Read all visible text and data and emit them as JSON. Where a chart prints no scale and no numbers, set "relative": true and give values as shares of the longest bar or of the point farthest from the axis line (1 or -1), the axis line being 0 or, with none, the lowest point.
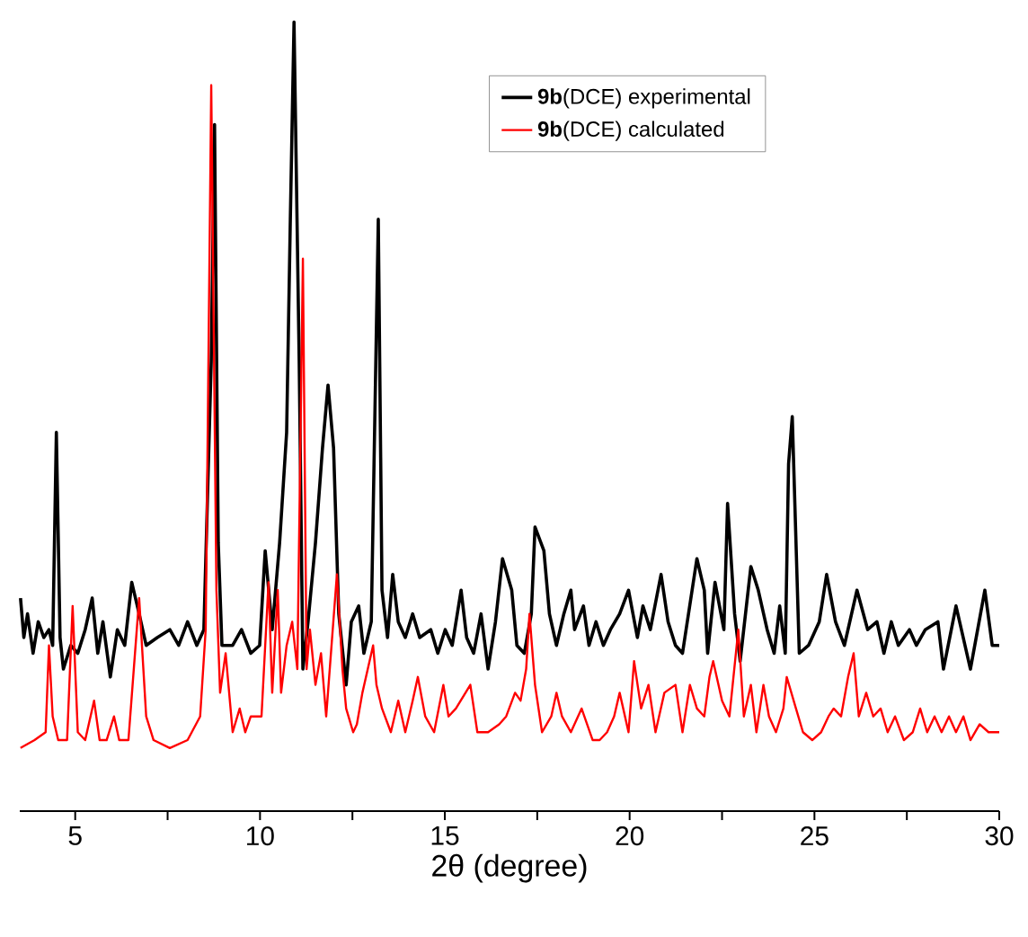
{
  "chart_data": {
    "type": "line",
    "relative": true,
    "xlabel": "2θ (degree)",
    "xlim": [
      3.5,
      30
    ],
    "xticks": [
      5,
      {
        "value": 7.5,
        "label": null
      },
      10,
      {
        "value": 12.5,
        "label": null
      },
      15,
      {
        "value": 17.5,
        "label": null
      },
      20,
      {
        "value": 22.5,
        "label": null
      },
      25,
      {
        "value": 27.5,
        "label": null
      },
      30
    ],
    "legend": "top right",
    "series": [
      {
        "name": "**9b**(DCE) experimental",
        "color": "#000000",
        "x": [
          3.52,
          3.61,
          3.71,
          3.86,
          4.0,
          4.15,
          4.29,
          4.39,
          4.49,
          4.59,
          4.68,
          4.88,
          5.07,
          5.27,
          5.46,
          5.61,
          5.75,
          5.95,
          6.14,
          6.34,
          6.53,
          6.73,
          6.92,
          7.22,
          7.56,
          7.8,
          8.04,
          8.29,
          8.48,
          8.68,
          8.77,
          8.87,
          8.97,
          9.26,
          9.5,
          9.75,
          9.99,
          10.14,
          10.33,
          10.53,
          10.72,
          10.82,
          10.92,
          11.06,
          11.16,
          11.3,
          11.5,
          11.69,
          11.84,
          11.99,
          12.13,
          12.33,
          12.47,
          12.67,
          12.81,
          13.01,
          13.2,
          13.3,
          13.45,
          13.59,
          13.74,
          13.93,
          14.13,
          14.32,
          14.62,
          14.81,
          15.01,
          15.2,
          15.44,
          15.59,
          15.78,
          15.98,
          16.17,
          16.37,
          16.56,
          16.81,
          16.95,
          17.15,
          17.34,
          17.44,
          17.68,
          17.83,
          18.02,
          18.22,
          18.41,
          18.51,
          18.75,
          18.9,
          19.09,
          19.29,
          19.48,
          19.73,
          19.97,
          20.21,
          20.36,
          20.56,
          20.85,
          21.04,
          21.24,
          21.43,
          21.82,
          22.02,
          22.11,
          22.31,
          22.55,
          22.65,
          22.84,
          22.99,
          23.28,
          23.48,
          23.72,
          23.91,
          24.06,
          24.21,
          24.3,
          24.4,
          24.59,
          24.84,
          25.13,
          25.33,
          25.57,
          25.81,
          26.15,
          26.44,
          26.69,
          26.88,
          27.08,
          27.27,
          27.57,
          27.76,
          28.0,
          28.34,
          28.49,
          28.83,
          29.22,
          29.61,
          29.81,
          30.0
        ],
        "values": [
          0.27,
          0.22,
          0.25,
          0.2,
          0.24,
          0.22,
          0.23,
          0.21,
          0.48,
          0.22,
          0.18,
          0.21,
          0.2,
          0.23,
          0.27,
          0.2,
          0.24,
          0.17,
          0.23,
          0.21,
          0.29,
          0.25,
          0.21,
          0.22,
          0.23,
          0.21,
          0.24,
          0.21,
          0.23,
          0.57,
          0.87,
          0.34,
          0.21,
          0.21,
          0.23,
          0.2,
          0.21,
          0.33,
          0.23,
          0.34,
          0.48,
          0.75,
          1.0,
          0.57,
          0.18,
          0.24,
          0.34,
          0.46,
          0.54,
          0.46,
          0.25,
          0.16,
          0.24,
          0.26,
          0.2,
          0.24,
          0.75,
          0.28,
          0.22,
          0.3,
          0.24,
          0.22,
          0.25,
          0.22,
          0.23,
          0.2,
          0.23,
          0.21,
          0.28,
          0.22,
          0.2,
          0.25,
          0.18,
          0.24,
          0.32,
          0.28,
          0.21,
          0.2,
          0.25,
          0.36,
          0.33,
          0.25,
          0.21,
          0.25,
          0.28,
          0.23,
          0.26,
          0.21,
          0.24,
          0.21,
          0.23,
          0.25,
          0.28,
          0.22,
          0.26,
          0.23,
          0.3,
          0.24,
          0.21,
          0.2,
          0.32,
          0.28,
          0.2,
          0.29,
          0.23,
          0.39,
          0.25,
          0.19,
          0.31,
          0.28,
          0.23,
          0.2,
          0.26,
          0.2,
          0.44,
          0.5,
          0.2,
          0.21,
          0.24,
          0.3,
          0.24,
          0.21,
          0.28,
          0.23,
          0.24,
          0.2,
          0.24,
          0.21,
          0.23,
          0.21,
          0.23,
          0.24,
          0.18,
          0.26,
          0.18,
          0.28,
          0.21,
          0.21
        ]
      },
      {
        "name": "**9b**(DCE) calculated",
        "color": "#ff0000",
        "x": [
          3.52,
          3.9,
          4.2,
          4.29,
          4.39,
          4.54,
          4.78,
          4.93,
          5.07,
          5.27,
          5.51,
          5.66,
          5.85,
          6.05,
          6.19,
          6.44,
          6.73,
          6.92,
          7.12,
          7.56,
          8.04,
          8.38,
          8.53,
          8.68,
          8.82,
          8.92,
          9.07,
          9.26,
          9.45,
          9.6,
          9.75,
          9.89,
          10.04,
          10.23,
          10.33,
          10.48,
          10.57,
          10.72,
          10.87,
          11.01,
          11.16,
          11.26,
          11.35,
          11.5,
          11.65,
          11.79,
          12.08,
          12.23,
          12.33,
          12.52,
          12.62,
          12.77,
          13.06,
          13.15,
          13.3,
          13.54,
          13.74,
          13.93,
          14.13,
          14.27,
          14.47,
          14.71,
          14.96,
          15.1,
          15.3,
          15.69,
          15.88,
          16.17,
          16.47,
          16.66,
          16.9,
          17.05,
          17.2,
          17.29,
          17.44,
          17.63,
          17.88,
          18.02,
          18.17,
          18.41,
          18.7,
          19.0,
          19.19,
          19.39,
          19.58,
          19.73,
          19.97,
          20.12,
          20.31,
          20.51,
          20.7,
          20.94,
          21.24,
          21.43,
          21.63,
          21.82,
          22.02,
          22.16,
          22.26,
          22.5,
          22.7,
          22.94,
          23.09,
          23.28,
          23.43,
          23.62,
          23.77,
          23.96,
          24.16,
          24.25,
          24.5,
          24.69,
          24.94,
          25.18,
          25.38,
          25.52,
          25.72,
          25.91,
          26.06,
          26.2,
          26.4,
          26.59,
          26.79,
          26.98,
          27.18,
          27.42,
          27.66,
          27.86,
          28.05,
          28.25,
          28.44,
          28.64,
          28.83,
          29.03,
          29.22,
          29.47,
          29.71,
          30.0
        ],
        "values": [
          0.08,
          0.09,
          0.1,
          0.21,
          0.12,
          0.09,
          0.09,
          0.26,
          0.1,
          0.09,
          0.14,
          0.09,
          0.09,
          0.12,
          0.09,
          0.09,
          0.27,
          0.12,
          0.09,
          0.08,
          0.09,
          0.12,
          0.23,
          0.92,
          0.28,
          0.15,
          0.2,
          0.1,
          0.13,
          0.1,
          0.12,
          0.12,
          0.12,
          0.29,
          0.15,
          0.28,
          0.15,
          0.21,
          0.24,
          0.18,
          0.7,
          0.18,
          0.23,
          0.16,
          0.2,
          0.12,
          0.3,
          0.18,
          0.13,
          0.1,
          0.11,
          0.15,
          0.21,
          0.16,
          0.13,
          0.1,
          0.14,
          0.1,
          0.14,
          0.17,
          0.12,
          0.1,
          0.16,
          0.12,
          0.13,
          0.16,
          0.1,
          0.1,
          0.11,
          0.12,
          0.15,
          0.14,
          0.18,
          0.25,
          0.16,
          0.1,
          0.12,
          0.15,
          0.12,
          0.1,
          0.13,
          0.09,
          0.09,
          0.1,
          0.12,
          0.15,
          0.1,
          0.19,
          0.13,
          0.16,
          0.1,
          0.15,
          0.16,
          0.1,
          0.16,
          0.13,
          0.12,
          0.17,
          0.19,
          0.14,
          0.12,
          0.23,
          0.12,
          0.16,
          0.1,
          0.16,
          0.12,
          0.1,
          0.13,
          0.17,
          0.13,
          0.1,
          0.09,
          0.1,
          0.12,
          0.13,
          0.12,
          0.17,
          0.2,
          0.12,
          0.15,
          0.12,
          0.13,
          0.1,
          0.12,
          0.09,
          0.1,
          0.13,
          0.1,
          0.12,
          0.1,
          0.12,
          0.1,
          0.12,
          0.09,
          0.11,
          0.1,
          0.1
        ]
      }
    ]
  }
}
